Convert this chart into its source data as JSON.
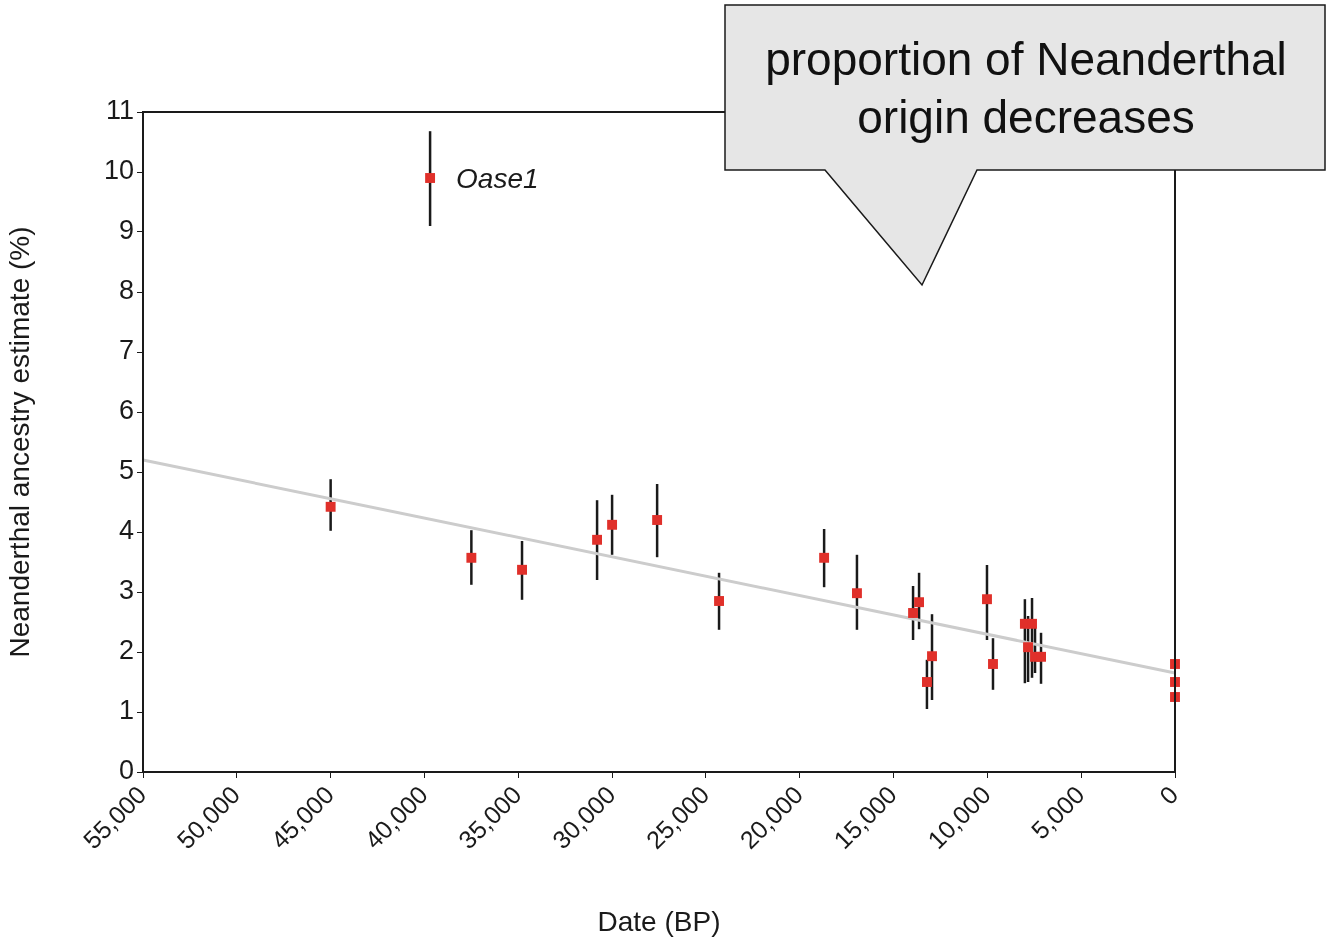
{
  "chart_data": {
    "type": "scatter",
    "xlabel": "Date (BP)",
    "ylabel": "Neanderthal ancestry estimate (%)",
    "xlim": [
      55000,
      0
    ],
    "ylim": [
      0,
      11
    ],
    "xticks": [
      {
        "value": 55000,
        "label": "55,000"
      },
      {
        "value": 50000,
        "label": "50,000"
      },
      {
        "value": 45000,
        "label": "45,000"
      },
      {
        "value": 40000,
        "label": "40,000"
      },
      {
        "value": 35000,
        "label": "35,000"
      },
      {
        "value": 30000,
        "label": "30,000"
      },
      {
        "value": 25000,
        "label": "25,000"
      },
      {
        "value": 20000,
        "label": "20,000"
      },
      {
        "value": 15000,
        "label": "15,000"
      },
      {
        "value": 10000,
        "label": "10,000"
      },
      {
        "value": 5000,
        "label": "5,000"
      },
      0
    ],
    "yticks": [
      0,
      1,
      2,
      3,
      4,
      5,
      6,
      7,
      8,
      9,
      10,
      11
    ],
    "grid": false,
    "legend": false,
    "marker": "square",
    "series": [
      {
        "type": "line",
        "color": "#cccccc",
        "marker": "none",
        "x": [
          55000,
          0
        ],
        "values": [
          5.2,
          1.65
        ]
      },
      {
        "type": "scatter",
        "color": "#e0302a",
        "x": [
          45000,
          37500,
          34800,
          30800,
          30000,
          27600,
          24300,
          18700,
          16950,
          13960,
          13640,
          12950,
          13220,
          10020,
          9700,
          8000,
          7620,
          7830,
          7460,
          7140,
          0,
          0,
          0,
          39700
        ],
        "values": [
          4.42,
          3.57,
          3.37,
          3.87,
          4.12,
          4.2,
          2.85,
          3.57,
          2.98,
          2.65,
          2.83,
          1.93,
          1.5,
          2.88,
          1.8,
          2.47,
          2.47,
          2.08,
          1.92,
          1.92,
          1.8,
          1.5,
          1.25,
          9.9
        ],
        "errors": [
          [
            4.02,
            4.88
          ],
          [
            3.12,
            4.03
          ],
          [
            2.87,
            3.85
          ],
          [
            3.2,
            4.53
          ],
          [
            3.62,
            4.62
          ],
          [
            3.58,
            4.8
          ],
          [
            2.37,
            3.32
          ],
          [
            3.08,
            4.05
          ],
          [
            2.37,
            3.62
          ],
          [
            2.2,
            3.1
          ],
          [
            2.38,
            3.32
          ],
          [
            1.2,
            2.63
          ],
          [
            1.05,
            1.87
          ],
          [
            2.2,
            3.45
          ],
          [
            1.37,
            2.23
          ],
          [
            1.48,
            2.88
          ],
          [
            1.57,
            2.9
          ],
          [
            1.5,
            2.6
          ],
          [
            1.65,
            2.4
          ],
          [
            1.47,
            2.32
          ],
          null,
          null,
          null,
          [
            9.1,
            10.68
          ]
        ]
      }
    ],
    "annotations": [
      {
        "text": "Oase1",
        "x": 39700,
        "y": 9.9
      },
      "proportion of Neanderthal origin decreases"
    ]
  }
}
